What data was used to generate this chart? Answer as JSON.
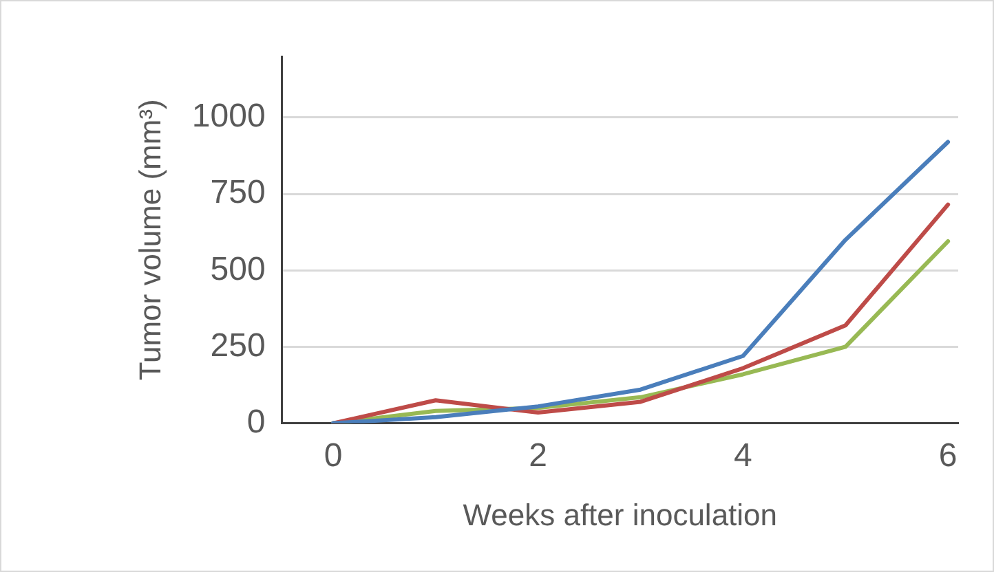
{
  "chart_data": {
    "type": "line",
    "xlabel": "Weeks after inoculation",
    "ylabel": "Tumor volume (mm³)",
    "x": [
      0,
      1,
      2,
      3,
      4,
      5,
      6
    ],
    "series": [
      {
        "color": "#4a7ebb",
        "values": [
          0,
          20,
          55,
          110,
          220,
          600,
          920
        ]
      },
      {
        "color": "#be4b48",
        "values": [
          0,
          75,
          35,
          70,
          180,
          320,
          715
        ]
      },
      {
        "color": "#98b954",
        "values": [
          0,
          40,
          50,
          85,
          160,
          250,
          595
        ]
      }
    ],
    "xlim": [
      -0.5,
      6.1
    ],
    "xticks": [
      0,
      2,
      4,
      6
    ],
    "ylim": [
      0,
      1200
    ],
    "yticks": [
      0,
      250,
      500,
      750,
      1000
    ],
    "grid": "y",
    "legend": false,
    "marker": "none",
    "line_style": "solid"
  }
}
